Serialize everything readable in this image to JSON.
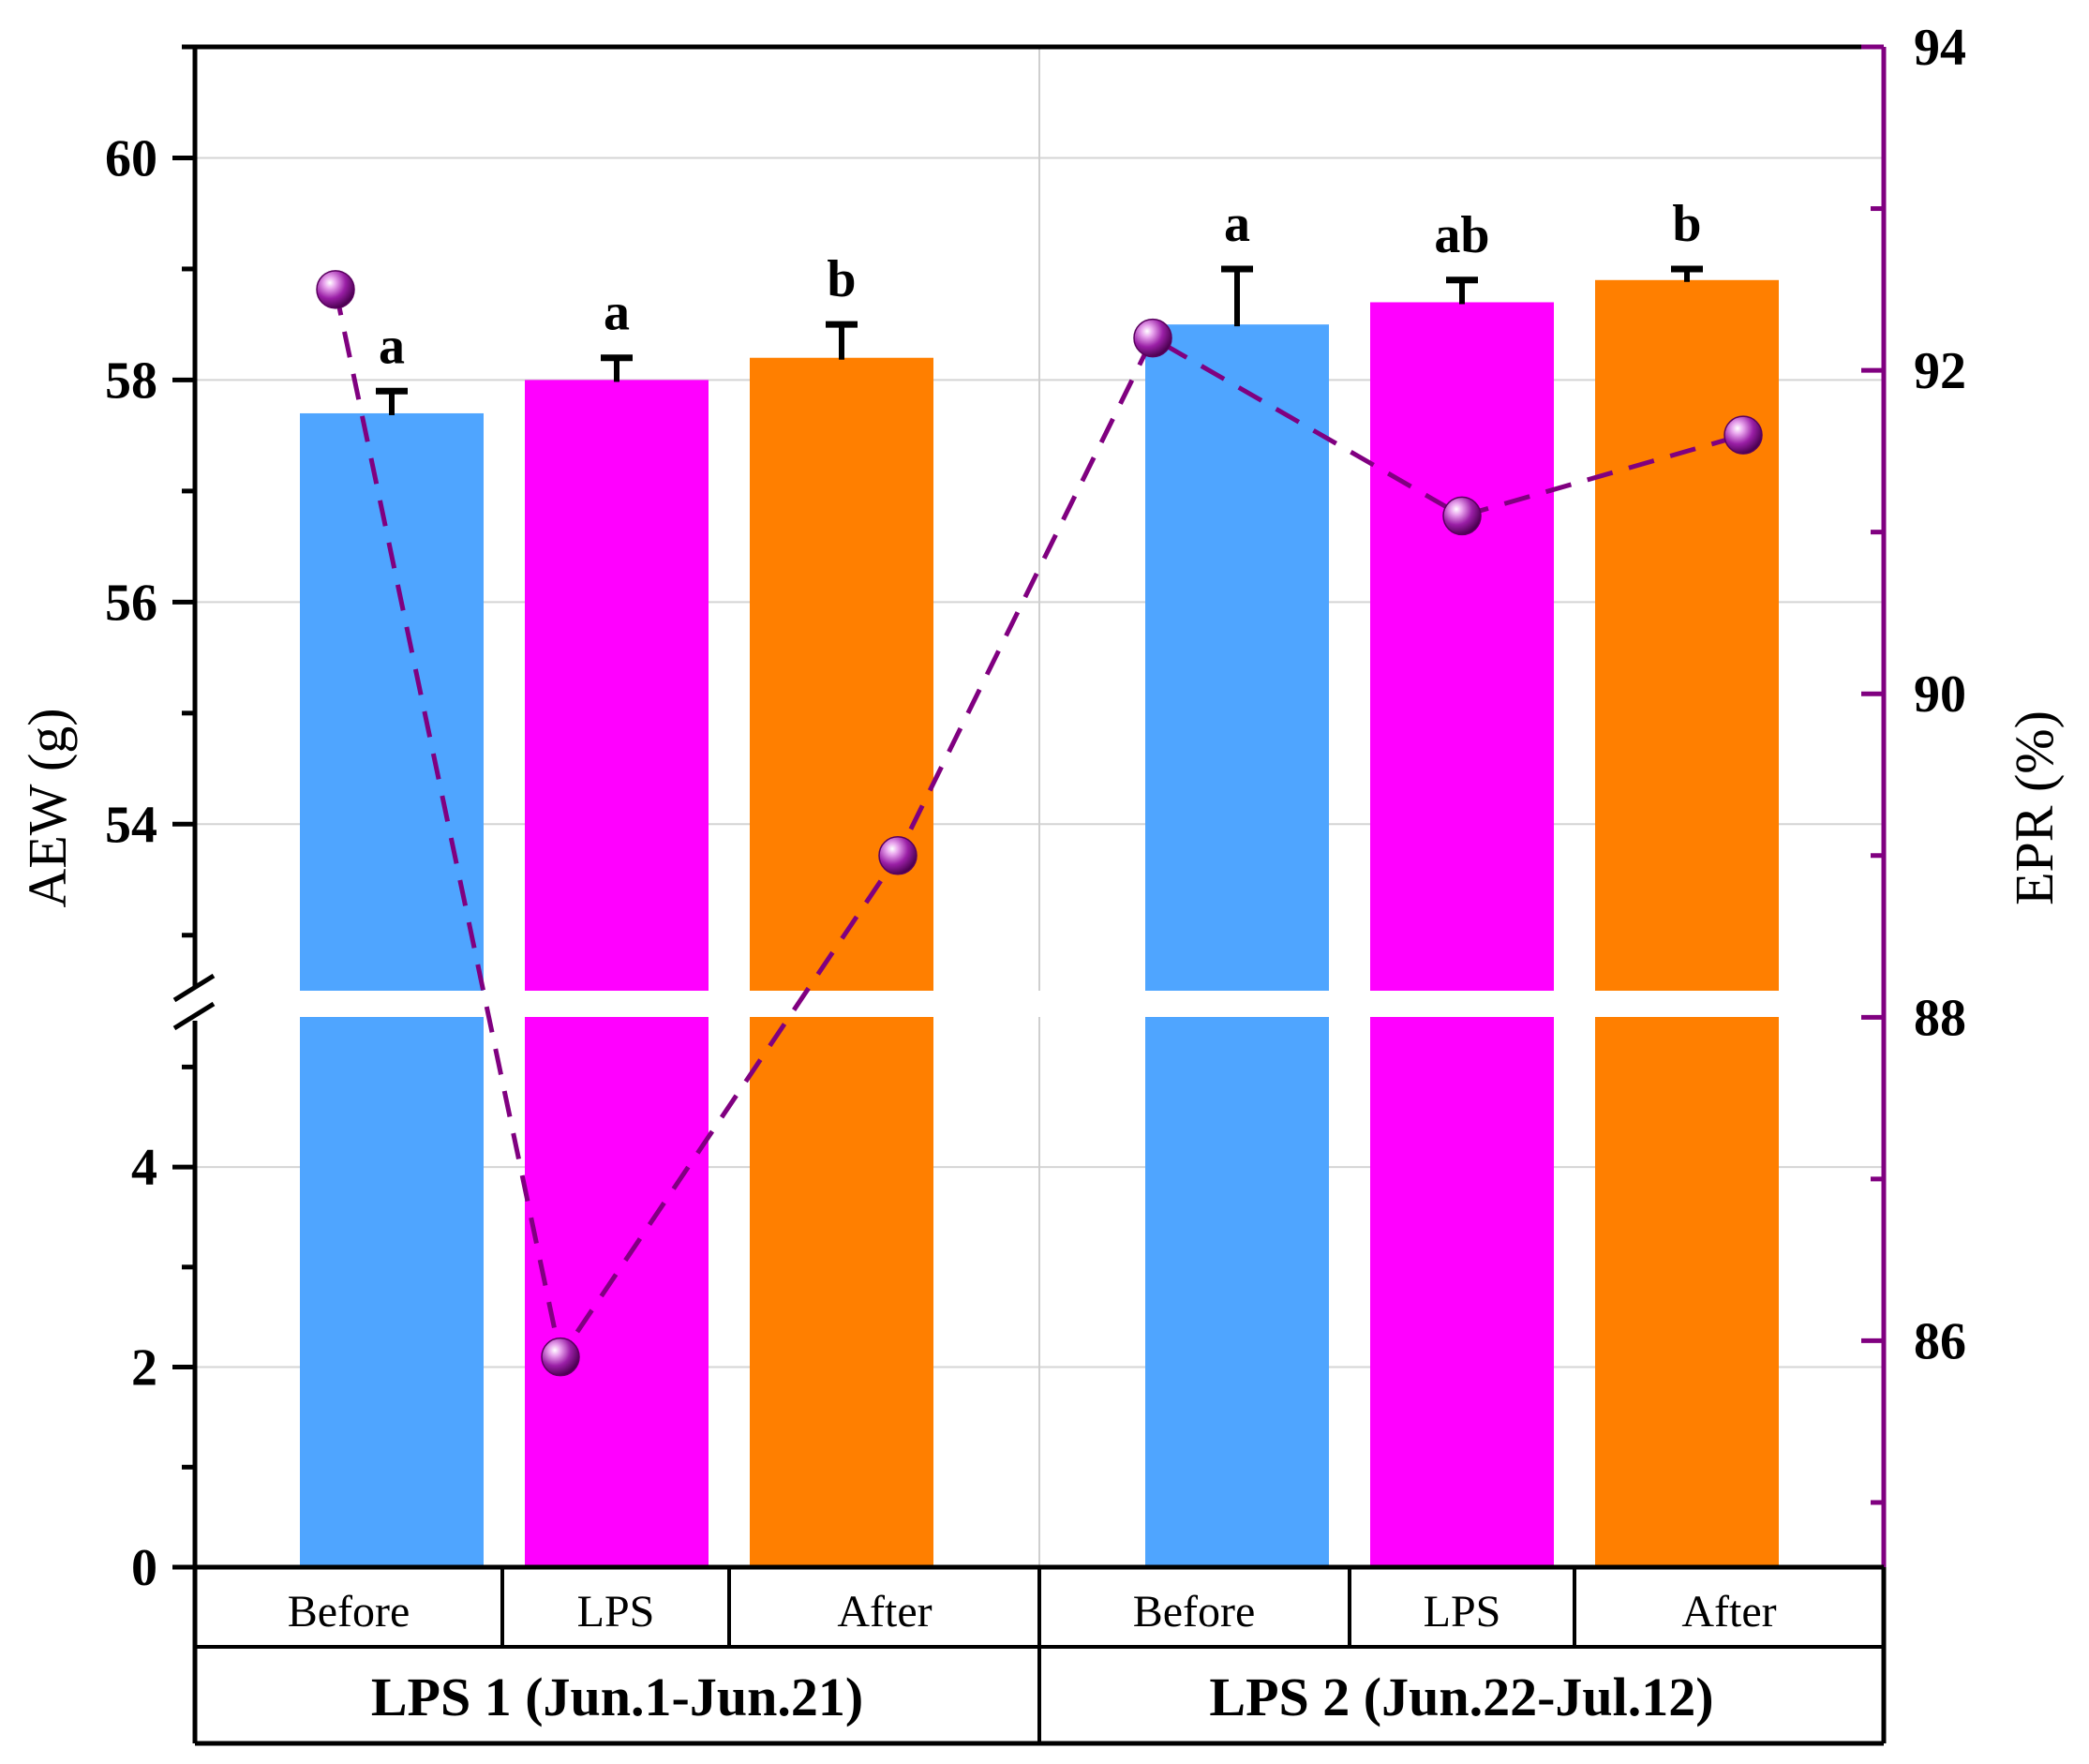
{
  "chart_data": {
    "type": "bar",
    "groups": [
      {
        "label": "LPS 1 (Jun.1-Jun.21)",
        "categories": [
          "Before",
          "LPS",
          "After"
        ]
      },
      {
        "label": "LPS 2 (Jun.22-Jul.12)",
        "categories": [
          "Before",
          "LPS",
          "After"
        ]
      }
    ],
    "ylabel": "AEW (g)",
    "y2label": "EPR (%)",
    "y_break": [
      5.5,
      52.5
    ],
    "ylim_lower": [
      0,
      5.5
    ],
    "ylim_upper": [
      52.5,
      61
    ],
    "y_ticks_lower": [
      "0",
      "2",
      "4"
    ],
    "y_ticks_upper": [
      "54",
      "56",
      "58",
      "60"
    ],
    "y2lim": [
      84.6,
      94
    ],
    "y2_ticks": [
      "86",
      "88",
      "90",
      "92",
      "94"
    ],
    "series": [
      {
        "name": "AEW",
        "kind": "bar",
        "values": [
          57.7,
          58.0,
          58.2,
          58.5,
          58.7,
          58.9
        ],
        "errors": [
          0.2,
          0.2,
          0.3,
          0.5,
          0.2,
          0.1
        ],
        "significance": [
          "a",
          "a",
          "b",
          "a",
          "ab",
          "b"
        ],
        "colors": [
          "#4FA5FF",
          "#FF00FF",
          "#FF7F00",
          "#4FA5FF",
          "#FF00FF",
          "#FF7F00"
        ]
      },
      {
        "name": "EPR",
        "kind": "line",
        "axis": "right",
        "values": [
          92.5,
          85.9,
          89.0,
          92.2,
          91.1,
          91.6
        ],
        "color": "#800080"
      }
    ]
  }
}
